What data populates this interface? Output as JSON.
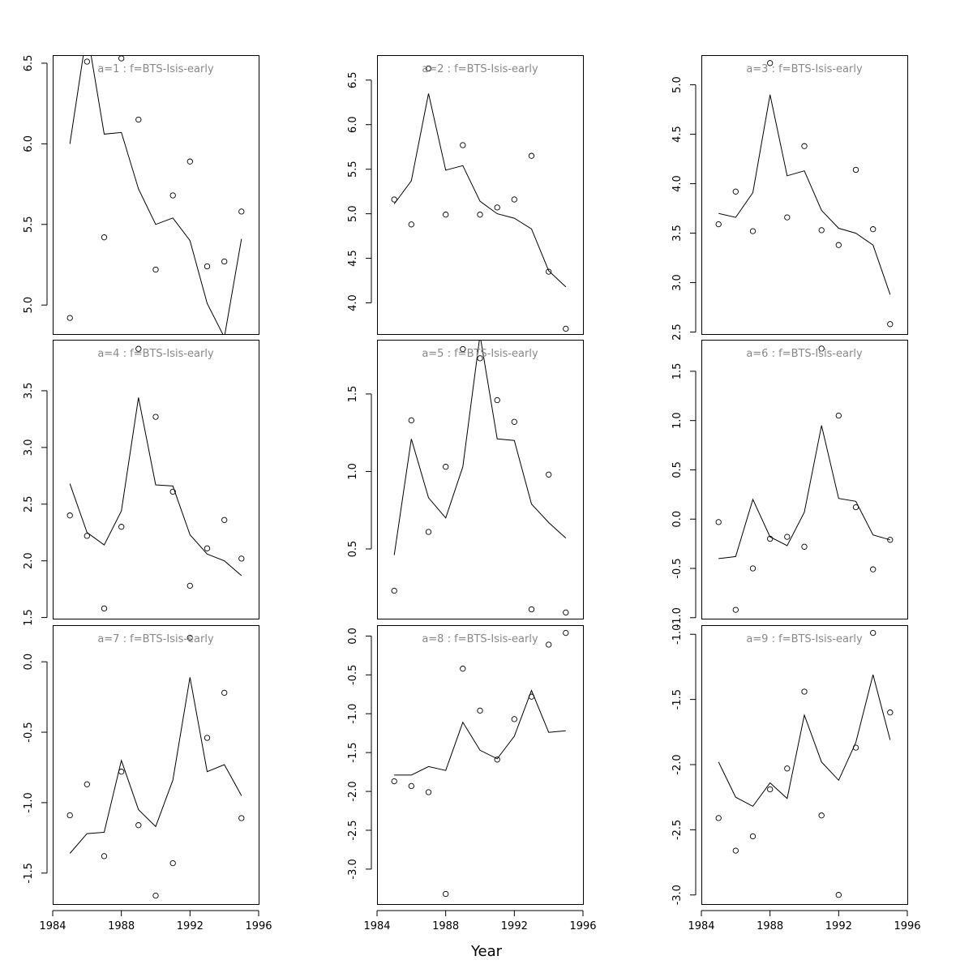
{
  "chart_data": {
    "type": "scatter",
    "xlabel": "Year",
    "x_ticks": [
      1984,
      1988,
      1992,
      1996
    ],
    "x_range": [
      1984,
      1996
    ],
    "grid": false,
    "panels": [
      {
        "title": "a=1  :  f=BTS-Isis-early",
        "ylim": [
          4.82,
          6.55
        ],
        "y_ticks": [
          5.0,
          5.5,
          6.0,
          6.5
        ],
        "x": [
          1985,
          1986,
          1987,
          1988,
          1989,
          1990,
          1991,
          1992,
          1993,
          1994,
          1995
        ],
        "observed": [
          4.92,
          6.51,
          5.42,
          6.53,
          6.15,
          5.22,
          5.68,
          5.89,
          5.24,
          5.27,
          5.58
        ],
        "fitted": [
          6.0,
          6.7,
          6.06,
          6.07,
          5.72,
          5.5,
          5.54,
          5.4,
          5.01,
          4.8,
          5.41
        ]
      },
      {
        "title": "a=4  :  f=BTS-Isis-early",
        "ylim": [
          1.49,
          3.95
        ],
        "y_ticks": [
          1.5,
          2.0,
          2.5,
          3.0,
          3.5
        ],
        "x": [
          1985,
          1986,
          1987,
          1988,
          1989,
          1990,
          1991,
          1992,
          1993,
          1994,
          1995
        ],
        "observed": [
          2.4,
          2.22,
          1.58,
          2.3,
          3.87,
          3.27,
          2.61,
          1.78,
          2.11,
          2.36,
          2.02
        ],
        "fitted": [
          2.68,
          2.25,
          2.14,
          2.44,
          3.44,
          2.67,
          2.66,
          2.23,
          2.06,
          2.0,
          1.87
        ]
      },
      {
        "title": "a=7  :  f=BTS-Isis-early",
        "ylim": [
          -1.72,
          0.26
        ],
        "y_ticks": [
          -1.5,
          -1.0,
          -0.5,
          0.0
        ],
        "x": [
          1985,
          1986,
          1987,
          1988,
          1989,
          1990,
          1991,
          1992,
          1993,
          1994,
          1995
        ],
        "observed": [
          -1.09,
          -0.87,
          -1.38,
          -0.78,
          -1.16,
          -1.66,
          -1.43,
          0.17,
          -0.54,
          -0.22,
          -1.11
        ],
        "fitted": [
          -1.36,
          -1.22,
          -1.21,
          -0.7,
          -1.05,
          -1.17,
          -0.84,
          -0.11,
          -0.78,
          -0.73,
          -0.95
        ]
      },
      {
        "title": "a=2  :  f=BTS-Isis-early",
        "ylim": [
          3.65,
          6.78
        ],
        "y_ticks": [
          4.0,
          4.5,
          5.0,
          5.5,
          6.0,
          6.5
        ],
        "x": [
          1985,
          1986,
          1987,
          1988,
          1989,
          1990,
          1991,
          1992,
          1993,
          1994,
          1995
        ],
        "observed": [
          5.16,
          4.88,
          6.63,
          4.99,
          5.77,
          4.99,
          5.07,
          5.16,
          5.65,
          4.35,
          3.71
        ],
        "fitted": [
          5.11,
          5.37,
          6.35,
          5.49,
          5.54,
          5.14,
          5.0,
          4.95,
          4.83,
          4.36,
          4.18
        ]
      },
      {
        "title": "a=5  :  f=BTS-Isis-early",
        "ylim": [
          0.05,
          1.85
        ],
        "y_ticks": [
          0.5,
          1.0,
          1.5
        ],
        "x": [
          1985,
          1986,
          1987,
          1988,
          1989,
          1990,
          1991,
          1992,
          1993,
          1994,
          1995
        ],
        "observed": [
          0.23,
          1.33,
          0.61,
          1.03,
          1.79,
          1.73,
          1.46,
          1.32,
          0.11,
          0.98,
          0.09
        ],
        "fitted": [
          0.46,
          1.21,
          0.83,
          0.7,
          1.03,
          1.88,
          1.21,
          1.2,
          0.79,
          0.67,
          0.57
        ]
      },
      {
        "title": "a=8  :  f=BTS-Isis-early",
        "ylim": [
          -3.45,
          0.14
        ],
        "y_ticks": [
          -3.0,
          -2.5,
          -2.0,
          -1.5,
          -1.0,
          -0.5,
          0.0
        ],
        "x": [
          1985,
          1986,
          1987,
          1988,
          1989,
          1990,
          1991,
          1992,
          1993,
          1994,
          1995
        ],
        "observed": [
          -1.87,
          -1.93,
          -2.01,
          -3.32,
          -0.42,
          -0.96,
          -1.59,
          -1.07,
          -0.78,
          -0.11,
          0.04
        ],
        "fitted": [
          -1.79,
          -1.79,
          -1.68,
          -1.73,
          -1.11,
          -1.47,
          -1.58,
          -1.29,
          -0.7,
          -1.24,
          -1.22
        ]
      },
      {
        "title": "a=3  :  f=BTS-Isis-early",
        "ylim": [
          2.48,
          5.3
        ],
        "y_ticks": [
          2.5,
          3.0,
          3.5,
          4.0,
          4.5,
          5.0
        ],
        "x": [
          1985,
          1986,
          1987,
          1988,
          1989,
          1990,
          1991,
          1992,
          1993,
          1994,
          1995
        ],
        "observed": [
          3.59,
          3.92,
          3.52,
          5.22,
          3.66,
          4.38,
          3.53,
          3.38,
          4.14,
          3.54,
          2.58
        ],
        "fitted": [
          3.7,
          3.66,
          3.91,
          4.9,
          4.08,
          4.13,
          3.73,
          3.55,
          3.5,
          3.38,
          2.88
        ]
      },
      {
        "title": "a=6  :  f=BTS-Isis-early",
        "ylim": [
          -1.01,
          1.82
        ],
        "y_ticks": [
          -1.0,
          -0.5,
          0.0,
          0.5,
          1.0,
          1.5
        ],
        "x": [
          1985,
          1986,
          1987,
          1988,
          1989,
          1990,
          1991,
          1992,
          1993,
          1994,
          1995
        ],
        "observed": [
          -0.03,
          -0.92,
          -0.5,
          -0.2,
          -0.18,
          -0.28,
          1.73,
          1.05,
          0.12,
          -0.51,
          -0.21
        ],
        "fitted": [
          -0.4,
          -0.38,
          0.2,
          -0.18,
          -0.27,
          0.07,
          0.95,
          0.21,
          0.18,
          -0.16,
          -0.21
        ]
      },
      {
        "title": "a=9  :  f=BTS-Isis-early",
        "ylim": [
          -3.07,
          -0.93
        ],
        "y_ticks": [
          -3.0,
          -2.5,
          -2.0,
          -1.5,
          -1.0
        ],
        "x": [
          1985,
          1986,
          1987,
          1988,
          1989,
          1990,
          1991,
          1992,
          1993,
          1994,
          1995
        ],
        "observed": [
          -2.41,
          -2.66,
          -2.55,
          -2.19,
          -2.03,
          -1.44,
          -2.39,
          -3.0,
          -1.87,
          -0.99,
          -1.6
        ],
        "fitted": [
          -1.98,
          -2.25,
          -2.32,
          -2.14,
          -2.26,
          -1.62,
          -1.98,
          -2.12,
          -1.83,
          -1.31,
          -1.81
        ]
      }
    ]
  }
}
